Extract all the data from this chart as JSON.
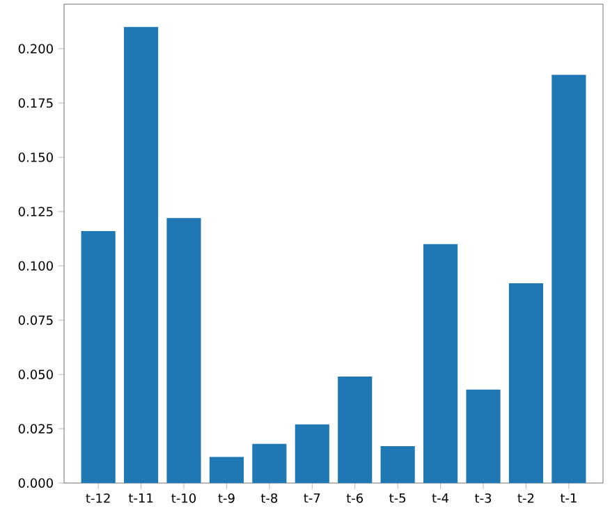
{
  "chart_data": {
    "type": "bar",
    "categories": [
      "t-12",
      "t-11",
      "t-10",
      "t-9",
      "t-8",
      "t-7",
      "t-6",
      "t-5",
      "t-4",
      "t-3",
      "t-2",
      "t-1"
    ],
    "values": [
      0.116,
      0.21,
      0.122,
      0.012,
      0.018,
      0.027,
      0.049,
      0.017,
      0.11,
      0.043,
      0.092,
      0.188
    ],
    "color": "#1f77b4",
    "ylim": [
      0,
      0.2205
    ],
    "yticks": [
      {
        "value": 0,
        "label": "0.000"
      },
      {
        "value": 0.025,
        "label": "0.025"
      },
      {
        "value": 0.05,
        "label": "0.050"
      },
      {
        "value": 0.075,
        "label": "0.075"
      },
      {
        "value": 0.1,
        "label": "0.100"
      },
      {
        "value": 0.125,
        "label": "0.125"
      },
      {
        "value": 0.15,
        "label": "0.150"
      },
      {
        "value": 0.175,
        "label": "0.175"
      },
      {
        "value": 0.2,
        "label": "0.200"
      }
    ],
    "grid": false
  }
}
